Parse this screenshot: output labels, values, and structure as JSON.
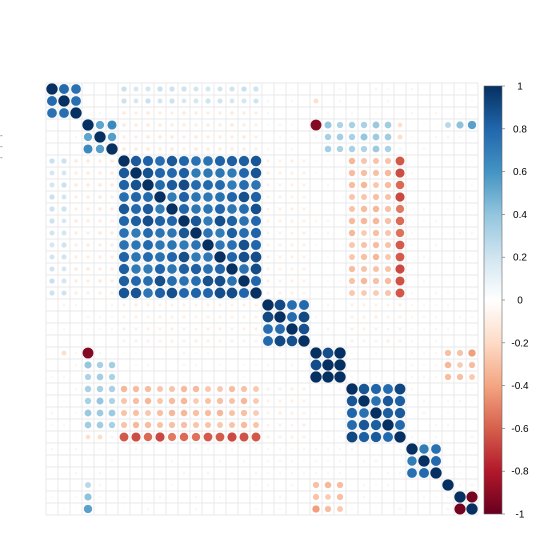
{
  "chart_data": {
    "type": "heatmap",
    "title": "",
    "xlabel": "",
    "ylabel": "",
    "variables": 36,
    "shape": "circle",
    "value_range": [
      -1,
      1
    ],
    "grid": true,
    "legend": "right",
    "colorbar": {
      "ticks": [
        1,
        0.8,
        0.6,
        0.4,
        0.2,
        0,
        -0.2,
        -0.4,
        -0.6,
        -0.8,
        -1
      ],
      "tick_labels": [
        "1",
        "0.8",
        "0.6",
        "0.4",
        "0.2",
        "0",
        "-0.2",
        "-0.4",
        "-0.6",
        "-0.8",
        "-1"
      ],
      "colors": [
        "#67001F",
        "#B2182B",
        "#D6604D",
        "#F4A582",
        "#FDDBC7",
        "#FFFFFF",
        "#D1E5F0",
        "#92C5DE",
        "#4393C3",
        "#2166AC",
        "#053061"
      ]
    },
    "row_labels": [
      "-",
      "-",
      "-"
    ],
    "blocks": [
      {
        "rows": [
          0,
          2
        ],
        "cols": [
          0,
          2
        ],
        "value": 0.85
      },
      {
        "rows": [
          3,
          5
        ],
        "cols": [
          3,
          5
        ],
        "value": 0.6
      },
      {
        "rows": [
          6,
          17
        ],
        "cols": [
          6,
          17
        ],
        "value": 0.8
      },
      {
        "rows": [
          18,
          21
        ],
        "cols": [
          18,
          21
        ],
        "value": 0.85
      },
      {
        "rows": [
          22,
          24
        ],
        "cols": [
          22,
          24
        ],
        "value": 0.95
      },
      {
        "rows": [
          25,
          29
        ],
        "cols": [
          25,
          29
        ],
        "value": 0.82
      },
      {
        "rows": [
          30,
          32
        ],
        "cols": [
          30,
          32
        ],
        "value": 0.75
      },
      {
        "rows": [
          1,
          1
        ],
        "cols": [
          10,
          17
        ],
        "value": 0.3
      },
      {
        "rows": [
          2,
          2
        ],
        "cols": [
          10,
          17
        ],
        "value": 0.1
      },
      {
        "rows": [
          3,
          3
        ],
        "cols": [
          6,
          17
        ],
        "value": -0.12
      },
      {
        "rows": [
          6,
          17
        ],
        "cols": [
          25,
          29
        ],
        "value": -0.4
      },
      {
        "rows": [
          6,
          17
        ],
        "cols": [
          0,
          1
        ],
        "value": 0.2
      },
      {
        "rows": [
          6,
          17
        ],
        "cols": [
          2,
          5
        ],
        "value": -0.1
      },
      {
        "rows": [
          18,
          21
        ],
        "cols": [
          6,
          17
        ],
        "value": -0.08
      },
      {
        "rows": [
          23,
          28
        ],
        "cols": [
          3,
          5
        ],
        "value": 0.35
      },
      {
        "rows": [
          25,
          29
        ],
        "cols": [
          6,
          17
        ],
        "value": -0.3
      },
      {
        "rows": [
          29,
          29
        ],
        "cols": [
          6,
          17
        ],
        "value": -0.6
      },
      {
        "rows": [
          25,
          29
        ],
        "cols": [
          18,
          21
        ],
        "value": -0.08
      },
      {
        "rows": [
          30,
          32
        ],
        "cols": [
          18,
          24
        ],
        "value": -0.05
      },
      {
        "rows": [
          33,
          35
        ],
        "cols": [
          3,
          3
        ],
        "value": 0.3
      },
      {
        "rows": [
          33,
          35
        ],
        "cols": [
          22,
          24
        ],
        "value": -0.3
      }
    ],
    "cells": [
      {
        "r": 0,
        "c": 1,
        "value": 0.85
      },
      {
        "r": 3,
        "c": 22,
        "value": -0.9
      },
      {
        "r": 3,
        "c": 34,
        "value": 0.4
      },
      {
        "r": 3,
        "c": 35,
        "value": 0.5
      },
      {
        "r": 22,
        "c": 3,
        "value": -0.9
      },
      {
        "r": 22,
        "c": 1,
        "value": -0.2
      },
      {
        "r": 22,
        "c": 33,
        "value": -0.3
      },
      {
        "r": 22,
        "c": 34,
        "value": -0.3
      },
      {
        "r": 22,
        "c": 35,
        "value": -0.4
      },
      {
        "r": 34,
        "c": 35,
        "value": -0.9
      },
      {
        "r": 35,
        "c": 34,
        "value": -0.9
      },
      {
        "r": 35,
        "c": 3,
        "value": 0.5
      },
      {
        "r": 3,
        "c": 29,
        "value": -0.2
      },
      {
        "r": 4,
        "c": 29,
        "value": -0.2
      }
    ]
  }
}
